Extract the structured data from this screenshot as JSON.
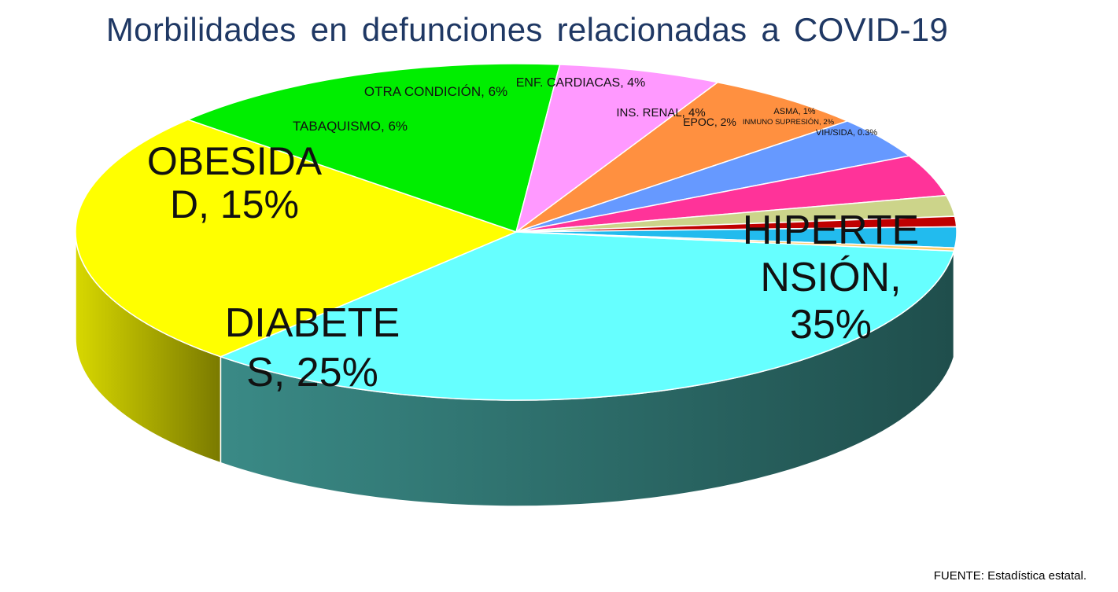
{
  "chart_data": {
    "type": "pie",
    "title": "Morbilidades en defunciones relacionadas a COVID-19",
    "slices": [
      {
        "label": "HIPERTENSIÓN",
        "value": 35,
        "value_label": "35%",
        "color": "#66ffff"
      },
      {
        "label": "DIABETES",
        "value": 25,
        "value_label": "25%",
        "color": "#ffff00"
      },
      {
        "label": "OBESIDAD",
        "value": 15,
        "value_label": "15%",
        "color": "#00ee00"
      },
      {
        "label": "TABAQUISMO",
        "value": 6,
        "value_label": "6%",
        "color": "#ff99ff"
      },
      {
        "label": "OTRA CONDICIÓN",
        "value": 6,
        "value_label": "6%",
        "color": "#ff9040"
      },
      {
        "label": "ENF. CARDIACAS",
        "value": 4,
        "value_label": "4%",
        "color": "#6699ff"
      },
      {
        "label": "INS. RENAL",
        "value": 4,
        "value_label": "4%",
        "color": "#ff3399"
      },
      {
        "label": "EPOC",
        "value": 2,
        "value_label": "2%",
        "color": "#ccd48a"
      },
      {
        "label": "ASMA",
        "value": 1,
        "value_label": "1%",
        "color": "#c00000"
      },
      {
        "label": "INMUNO SUPRESIÓN",
        "value": 2,
        "value_label": "2%",
        "color": "#22bbee"
      },
      {
        "label": "VIH/SIDA",
        "value": 0.3,
        "value_label": "0.3%",
        "color": "#ffcc66"
      }
    ]
  },
  "labels": {
    "hipertension": [
      "HIPERTE",
      "NSIÓN,",
      "35%"
    ],
    "diabetes": [
      "DIABETE",
      "S, 25%"
    ],
    "obesidad": [
      "OBESIDA",
      "D, 15%"
    ],
    "tabaquismo": "TABAQUISMO, 6%",
    "otra": "OTRA CONDICIÓN, 6%",
    "cardiacas": "ENF. CARDIACAS, 4%",
    "renal": "INS. RENAL, 4%",
    "epoc": "EPOC, 2%",
    "asma": "ASMA, 1%",
    "inmuno": "INMUNO SUPRESIÓN, 2%",
    "vih": "VIH/SIDA, 0.3%"
  },
  "source": "FUENTE:  Estadística estatal."
}
